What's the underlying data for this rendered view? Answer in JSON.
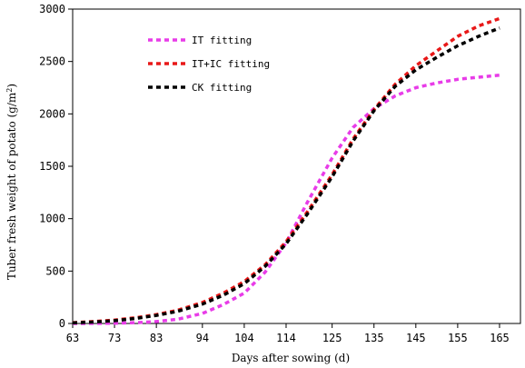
{
  "chart_data": {
    "type": "line",
    "xlabel": "Days after sowing (d)",
    "ylabel_main": "Tuber fresh weight of potato (g/m",
    "ylabel_sup": "2",
    "ylabel_tail": ")",
    "xlim": [
      63,
      170
    ],
    "ylim": [
      0,
      3000
    ],
    "x_ticks": [
      63,
      73,
      83,
      94,
      104,
      114,
      125,
      135,
      145,
      155,
      165
    ],
    "y_ticks": [
      0,
      500,
      1000,
      1500,
      2000,
      2500,
      3000
    ],
    "grid": false,
    "legend_position": "upper-left",
    "series": [
      {
        "name": "IT fitting",
        "color": "#e83ce8",
        "x": [
          63,
          68,
          73,
          78,
          83,
          88,
          94,
          99,
          104,
          109,
          114,
          119,
          125,
          130,
          135,
          140,
          145,
          150,
          155,
          160,
          165
        ],
        "y": [
          0,
          1,
          3,
          8,
          18,
          40,
          95,
          180,
          290,
          490,
          770,
          1150,
          1580,
          1870,
          2050,
          2170,
          2250,
          2295,
          2330,
          2350,
          2370
        ]
      },
      {
        "name": "IT+IC fitting",
        "color": "#e81818",
        "x": [
          63,
          68,
          73,
          78,
          83,
          88,
          94,
          99,
          104,
          109,
          114,
          119,
          125,
          130,
          135,
          140,
          145,
          150,
          155,
          160,
          165
        ],
        "y": [
          8,
          18,
          32,
          55,
          85,
          125,
          200,
          290,
          400,
          560,
          780,
          1060,
          1420,
          1760,
          2040,
          2280,
          2460,
          2600,
          2740,
          2840,
          2910
        ]
      },
      {
        "name": "CK fitting",
        "color": "#000000",
        "x": [
          63,
          68,
          73,
          78,
          83,
          88,
          94,
          99,
          104,
          109,
          114,
          119,
          125,
          130,
          135,
          140,
          145,
          150,
          155,
          160,
          165
        ],
        "y": [
          5,
          14,
          27,
          48,
          77,
          115,
          185,
          270,
          380,
          545,
          760,
          1040,
          1400,
          1740,
          2030,
          2260,
          2420,
          2540,
          2650,
          2740,
          2820
        ]
      }
    ]
  }
}
